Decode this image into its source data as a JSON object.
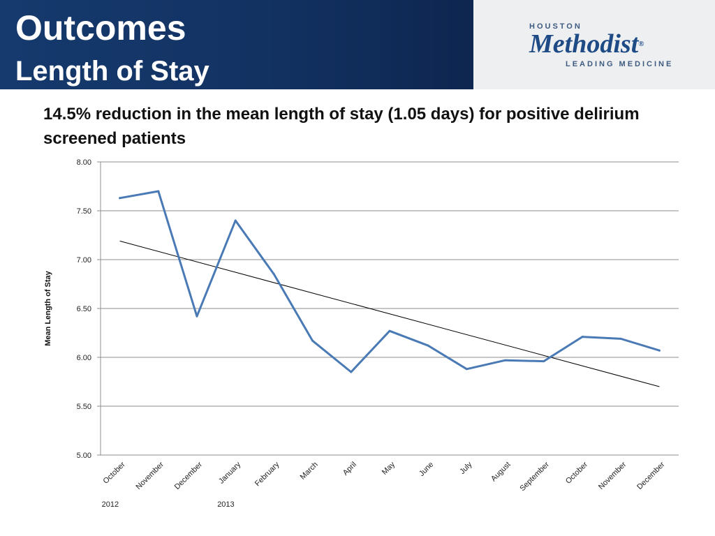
{
  "header": {
    "title": "Outcomes",
    "subtitle": "Length of Stay"
  },
  "logo": {
    "top": "HOUSTON",
    "main": "Methodist",
    "registered": "®",
    "tagline": "LEADING MEDICINE"
  },
  "headline": "14.5% reduction in the mean length of stay (1.05 days) for positive delirium screened patients",
  "colors": {
    "header_blue": "#163a6e",
    "series_line": "#4a7ab5",
    "trend_line": "#000000",
    "grid": "#8c8c8c"
  },
  "chart_data": {
    "type": "line",
    "categories": [
      "October",
      "November",
      "December",
      "January",
      "February",
      "March",
      "April",
      "May",
      "June",
      "July",
      "August",
      "September",
      "October",
      "November",
      "December"
    ],
    "year_labels": [
      {
        "category_index": 0,
        "label": "2012"
      },
      {
        "category_index": 3,
        "label": "2013"
      }
    ],
    "series": [
      {
        "values": [
          7.63,
          7.7,
          6.42,
          7.4,
          6.85,
          6.17,
          5.85,
          6.27,
          6.12,
          5.88,
          5.97,
          5.96,
          6.21,
          6.19,
          6.07
        ]
      }
    ],
    "trendline": {
      "type": "linear",
      "start": 7.19,
      "end": 5.7
    },
    "ylabel": "Mean Length of Stay",
    "xlabel": "",
    "ylim": [
      5.0,
      8.0
    ],
    "yticks": [
      "5.00",
      "5.50",
      "6.00",
      "6.50",
      "7.00",
      "7.50",
      "8.00"
    ],
    "grid": true,
    "legend": "none"
  }
}
